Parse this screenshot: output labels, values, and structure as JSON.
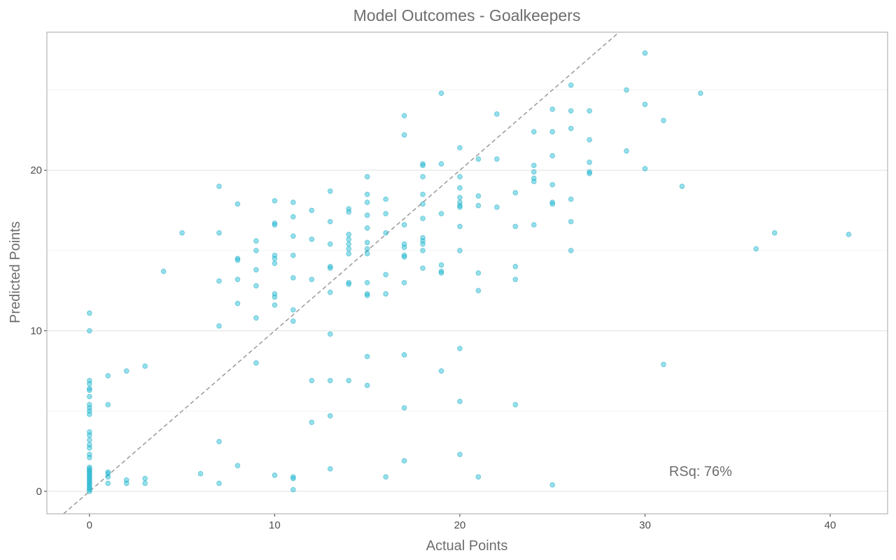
{
  "chart_data": {
    "type": "scatter",
    "title": "Model Outcomes - Goalkeepers",
    "xlabel": "Actual Points",
    "ylabel": "Predicted Points",
    "xlim": [
      -2.3,
      43.1
    ],
    "ylim": [
      -1.4,
      28.6
    ],
    "x_ticks": [
      0,
      10,
      20,
      30,
      40
    ],
    "y_ticks": [
      0,
      10,
      20
    ],
    "x_tick_labels": [
      "0",
      "10",
      "20",
      "30",
      "40"
    ],
    "y_tick_labels": [
      "0",
      "10",
      "20"
    ],
    "grid": true,
    "reference_line": {
      "style": "dashed",
      "slope": 1,
      "intercept": 0,
      "color": "#999999"
    },
    "annotation": {
      "text": "RSq: 76%",
      "x": 33,
      "y": 1
    },
    "point_color": "#29c0d8",
    "points": [
      [
        0,
        11.1
      ],
      [
        0,
        10.0
      ],
      [
        0,
        6.9
      ],
      [
        0,
        6.7
      ],
      [
        0,
        6.4
      ],
      [
        0,
        6.3
      ],
      [
        0,
        5.9
      ],
      [
        0,
        5.4
      ],
      [
        0,
        5.2
      ],
      [
        0,
        5.0
      ],
      [
        0,
        4.8
      ],
      [
        0,
        3.7
      ],
      [
        0,
        3.5
      ],
      [
        0,
        3.2
      ],
      [
        0,
        2.9
      ],
      [
        0,
        2.7
      ],
      [
        0,
        2.3
      ],
      [
        0,
        2.1
      ],
      [
        0,
        1.5
      ],
      [
        0,
        1.4
      ],
      [
        0,
        1.3
      ],
      [
        0,
        1.2
      ],
      [
        0,
        1.1
      ],
      [
        0,
        1.0
      ],
      [
        0,
        0.9
      ],
      [
        0,
        0.8
      ],
      [
        0,
        0.7
      ],
      [
        0,
        0.6
      ],
      [
        0,
        0.5
      ],
      [
        0,
        0.4
      ],
      [
        0,
        0.3
      ],
      [
        0,
        0.2
      ],
      [
        0,
        0.1
      ],
      [
        0,
        0.0
      ],
      [
        1,
        7.2
      ],
      [
        1,
        5.4
      ],
      [
        1,
        1.2
      ],
      [
        1,
        1.1
      ],
      [
        1,
        0.9
      ],
      [
        1,
        0.5
      ],
      [
        2,
        7.5
      ],
      [
        2,
        0.7
      ],
      [
        2,
        0.5
      ],
      [
        3,
        7.8
      ],
      [
        3,
        0.8
      ],
      [
        3,
        0.5
      ],
      [
        4,
        13.7
      ],
      [
        5,
        16.1
      ],
      [
        6,
        1.1
      ],
      [
        7,
        19.0
      ],
      [
        7,
        16.1
      ],
      [
        7,
        13.1
      ],
      [
        7,
        10.3
      ],
      [
        7,
        3.1
      ],
      [
        7,
        0.5
      ],
      [
        8,
        17.9
      ],
      [
        8,
        14.5
      ],
      [
        8,
        14.4
      ],
      [
        8,
        13.2
      ],
      [
        8,
        11.7
      ],
      [
        8,
        1.6
      ],
      [
        9,
        15.6
      ],
      [
        9,
        15.0
      ],
      [
        9,
        13.8
      ],
      [
        9,
        12.8
      ],
      [
        9,
        10.8
      ],
      [
        9,
        8.0
      ],
      [
        10,
        18.1
      ],
      [
        10,
        16.7
      ],
      [
        10,
        16.6
      ],
      [
        10,
        14.7
      ],
      [
        10,
        14.5
      ],
      [
        10,
        14.2
      ],
      [
        10,
        12.3
      ],
      [
        10,
        12.1
      ],
      [
        10,
        11.6
      ],
      [
        10,
        1.0
      ],
      [
        11,
        18.0
      ],
      [
        11,
        17.1
      ],
      [
        11,
        15.9
      ],
      [
        11,
        14.7
      ],
      [
        11,
        13.3
      ],
      [
        11,
        11.3
      ],
      [
        11,
        10.6
      ],
      [
        11,
        0.9
      ],
      [
        11,
        0.8
      ],
      [
        11,
        0.1
      ],
      [
        12,
        17.5
      ],
      [
        12,
        15.7
      ],
      [
        12,
        13.2
      ],
      [
        12,
        6.9
      ],
      [
        12,
        4.3
      ],
      [
        13,
        18.7
      ],
      [
        13,
        16.8
      ],
      [
        13,
        15.4
      ],
      [
        13,
        14.0
      ],
      [
        13,
        13.9
      ],
      [
        13,
        12.4
      ],
      [
        13,
        9.8
      ],
      [
        13,
        6.9
      ],
      [
        13,
        4.7
      ],
      [
        13,
        1.4
      ],
      [
        14,
        17.6
      ],
      [
        14,
        17.4
      ],
      [
        14,
        16.0
      ],
      [
        14,
        15.7
      ],
      [
        14,
        15.4
      ],
      [
        14,
        15.1
      ],
      [
        14,
        14.8
      ],
      [
        14,
        13.0
      ],
      [
        14,
        12.9
      ],
      [
        14,
        6.9
      ],
      [
        15,
        19.6
      ],
      [
        15,
        18.5
      ],
      [
        15,
        18.0
      ],
      [
        15,
        17.2
      ],
      [
        15,
        16.4
      ],
      [
        15,
        15.5
      ],
      [
        15,
        15.1
      ],
      [
        15,
        14.8
      ],
      [
        15,
        13.0
      ],
      [
        15,
        12.3
      ],
      [
        15,
        12.2
      ],
      [
        15,
        8.4
      ],
      [
        15,
        6.6
      ],
      [
        16,
        18.2
      ],
      [
        16,
        17.3
      ],
      [
        16,
        16.1
      ],
      [
        16,
        13.5
      ],
      [
        16,
        12.3
      ],
      [
        16,
        0.9
      ],
      [
        17,
        23.4
      ],
      [
        17,
        22.2
      ],
      [
        17,
        16.6
      ],
      [
        17,
        15.4
      ],
      [
        17,
        15.2
      ],
      [
        17,
        14.7
      ],
      [
        17,
        14.6
      ],
      [
        17,
        13.0
      ],
      [
        17,
        8.5
      ],
      [
        17,
        5.2
      ],
      [
        17,
        1.9
      ],
      [
        18,
        20.4
      ],
      [
        18,
        20.3
      ],
      [
        18,
        19.6
      ],
      [
        18,
        18.5
      ],
      [
        18,
        17.9
      ],
      [
        18,
        17.0
      ],
      [
        18,
        15.8
      ],
      [
        18,
        15.6
      ],
      [
        18,
        15.4
      ],
      [
        18,
        15.0
      ],
      [
        18,
        13.9
      ],
      [
        19,
        24.8
      ],
      [
        19,
        20.4
      ],
      [
        19,
        17.3
      ],
      [
        19,
        14.1
      ],
      [
        19,
        13.7
      ],
      [
        19,
        13.6
      ],
      [
        19,
        7.5
      ],
      [
        20,
        21.4
      ],
      [
        20,
        19.6
      ],
      [
        20,
        18.9
      ],
      [
        20,
        18.3
      ],
      [
        20,
        18.0
      ],
      [
        20,
        17.8
      ],
      [
        20,
        17.7
      ],
      [
        20,
        16.5
      ],
      [
        20,
        15.0
      ],
      [
        20,
        8.9
      ],
      [
        20,
        5.6
      ],
      [
        20,
        2.3
      ],
      [
        21,
        20.7
      ],
      [
        21,
        18.4
      ],
      [
        21,
        17.8
      ],
      [
        21,
        13.6
      ],
      [
        21,
        12.5
      ],
      [
        21,
        0.9
      ],
      [
        22,
        23.5
      ],
      [
        22,
        20.7
      ],
      [
        22,
        17.7
      ],
      [
        23,
        18.6
      ],
      [
        23,
        16.5
      ],
      [
        23,
        14.0
      ],
      [
        23,
        13.2
      ],
      [
        23,
        5.4
      ],
      [
        24,
        22.4
      ],
      [
        24,
        20.3
      ],
      [
        24,
        19.9
      ],
      [
        24,
        19.5
      ],
      [
        24,
        19.3
      ],
      [
        24,
        16.6
      ],
      [
        25,
        23.8
      ],
      [
        25,
        22.4
      ],
      [
        25,
        20.9
      ],
      [
        25,
        19.1
      ],
      [
        25,
        18.0
      ],
      [
        25,
        17.9
      ],
      [
        25,
        0.4
      ],
      [
        26,
        25.3
      ],
      [
        26,
        23.7
      ],
      [
        26,
        22.6
      ],
      [
        26,
        18.2
      ],
      [
        26,
        16.8
      ],
      [
        26,
        15.0
      ],
      [
        27,
        23.7
      ],
      [
        27,
        21.9
      ],
      [
        27,
        20.5
      ],
      [
        27,
        19.9
      ],
      [
        27,
        19.8
      ],
      [
        29,
        25.0
      ],
      [
        29,
        21.2
      ],
      [
        30,
        27.3
      ],
      [
        30,
        24.1
      ],
      [
        30,
        20.1
      ],
      [
        31,
        23.1
      ],
      [
        31,
        7.9
      ],
      [
        32,
        19.0
      ],
      [
        33,
        24.8
      ],
      [
        36,
        15.1
      ],
      [
        37,
        16.1
      ],
      [
        41,
        16.0
      ]
    ]
  }
}
